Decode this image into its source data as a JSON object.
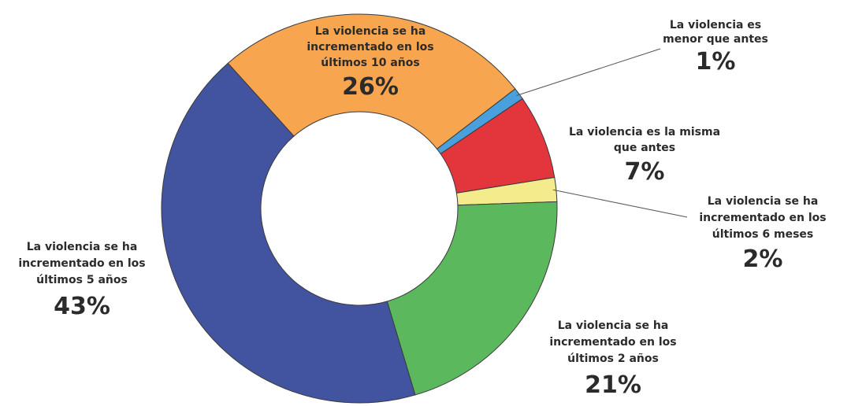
{
  "chart_data": {
    "type": "pie",
    "variant": "donut",
    "unit": "%",
    "legend": "none",
    "slices": [
      {
        "label": "La violencia es menor que antes",
        "label_lines": [
          "La violencia es",
          "menor que antes"
        ],
        "value": 1,
        "display": "1%",
        "color": "#4a9fdd"
      },
      {
        "label": "La violencia es la misma que antes",
        "label_lines": [
          "La violencia es la misma",
          "que antes"
        ],
        "value": 7,
        "display": "7%",
        "color": "#e2363c"
      },
      {
        "label": "La violencia se ha incrementado en los últimos 6 meses",
        "label_lines": [
          "La violencia se ha",
          "incrementado en los",
          "últimos 6 meses"
        ],
        "value": 2,
        "display": "2%",
        "color": "#f4ec8c"
      },
      {
        "label": "La violencia se ha incrementado en los últimos 2 años",
        "label_lines": [
          "La violencia se ha",
          "incrementado en los",
          "últimos 2 años"
        ],
        "value": 21,
        "display": "21%",
        "color": "#5cb85c"
      },
      {
        "label": "La violencia se ha incrementado en los últimos 5 años",
        "label_lines": [
          "La violencia se ha",
          "incrementado en los",
          "últimos 5 años"
        ],
        "value": 43,
        "display": "43%",
        "color": "#4254a0"
      },
      {
        "label": "La violencia se ha incrementado en los últimos 10 años",
        "label_lines": [
          "La violencia se ha",
          "incrementado en los",
          "últimos 10 años"
        ],
        "value": 26,
        "display": "26%",
        "color": "#f7a54e"
      }
    ]
  }
}
